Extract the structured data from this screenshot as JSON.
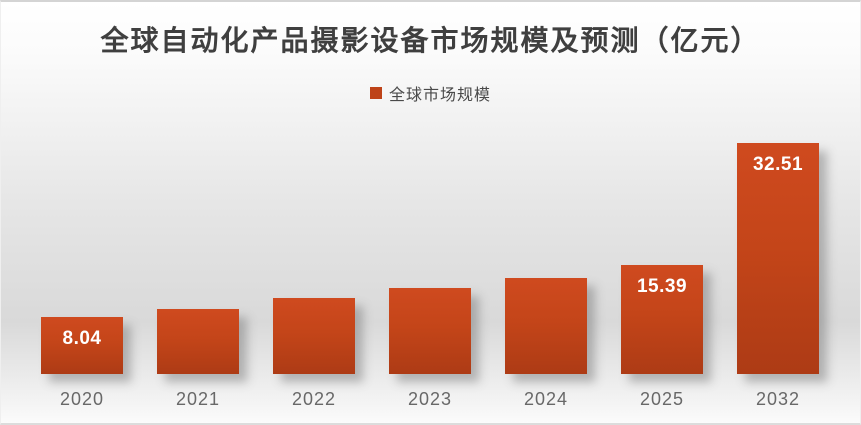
{
  "chart": {
    "accent_color": "#be4318",
    "bar_gradient_top": "#cf4a1f",
    "bar_gradient_bottom": "#ad3b15",
    "title_color": "#3f3f3f",
    "axis_label_color": "#686868",
    "data_label_color": "#ffffff"
  },
  "chart_data": {
    "type": "bar",
    "title": "全球自动化产品摄影设备市场规模及预测（亿元）",
    "series_name": "全球市场规模",
    "unit": "亿元",
    "categories": [
      "2020",
      "2021",
      "2022",
      "2023",
      "2024",
      "2025",
      "2032"
    ],
    "values": [
      8.04,
      9.2,
      10.7,
      12.1,
      13.5,
      15.39,
      32.51
    ],
    "data_labels": [
      "8.04",
      null,
      null,
      null,
      null,
      "15.39",
      "32.51"
    ],
    "ylim": [
      0,
      34
    ],
    "grid": false,
    "legend_position": "top-center",
    "bar_color": "#c2451b"
  }
}
